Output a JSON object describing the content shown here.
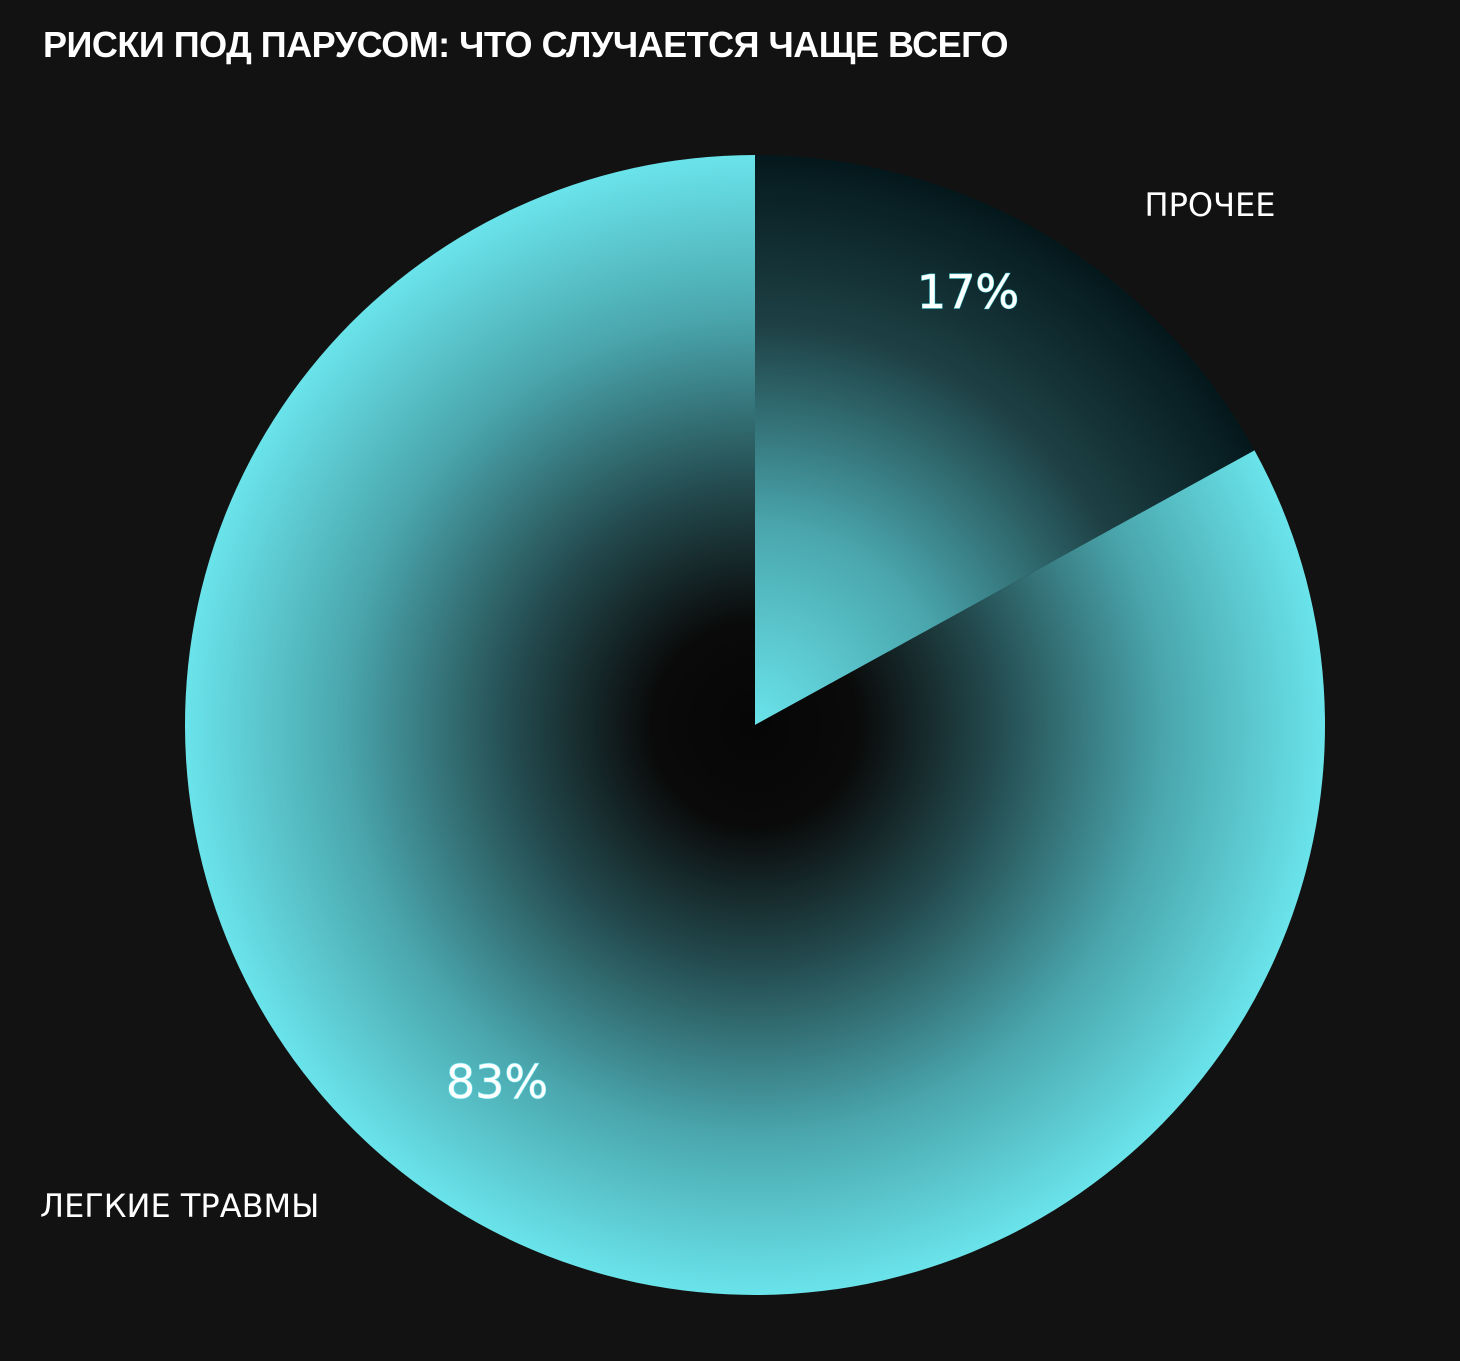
{
  "chart_data": {
    "type": "pie",
    "title": "РИСКИ ПОД ПАРУСОМ: ЧТО СЛУЧАЕТСЯ ЧАЩЕ ВСЕГО",
    "slices": [
      {
        "label": "ПРОЧЕЕ",
        "value": 17,
        "value_label": "17%"
      },
      {
        "label": "ЛЕГКИЕ ТРАВМЫ",
        "value": 83,
        "value_label": "83%"
      }
    ],
    "start_angle": "12 o'clock",
    "direction": "clockwise",
    "legend": "none"
  },
  "colors": {
    "background": "#121212",
    "slice_edge": "#6ae3ea",
    "slice_center": "#060606",
    "text": "#ffffff"
  }
}
